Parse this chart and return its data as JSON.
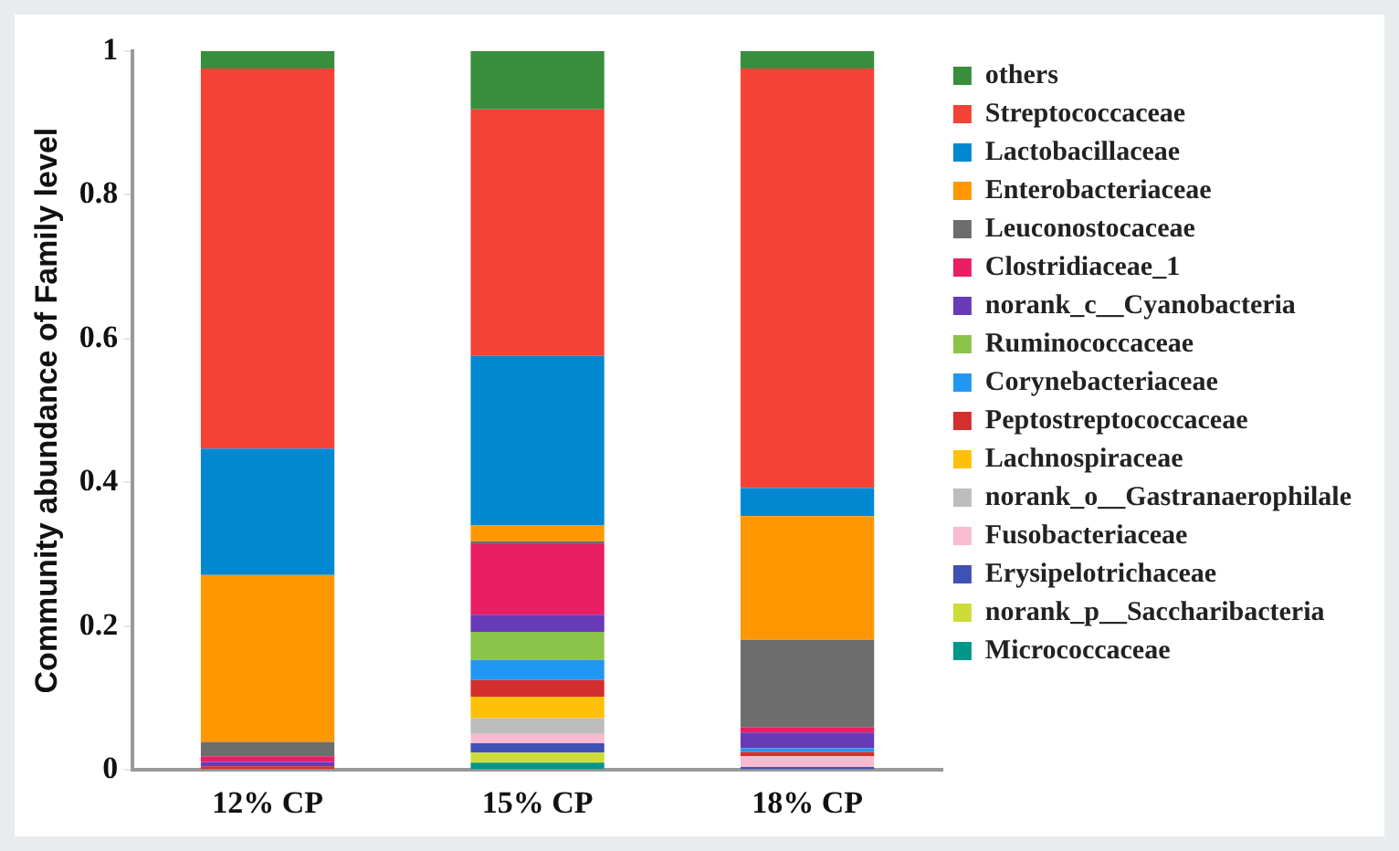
{
  "chart_data": {
    "type": "bar",
    "stacked": true,
    "ylabel": "Community abundance of Family level",
    "categories": [
      "12% CP",
      "15% CP",
      "18% CP"
    ],
    "ylim": [
      0,
      1
    ],
    "yticks": [
      0,
      0.2,
      0.4,
      0.6,
      0.8,
      1
    ],
    "grid": false,
    "legend": "right",
    "series": [
      {
        "name": "Micrococcaceae",
        "color": "#009688",
        "values": [
          null,
          0.01,
          0
        ]
      },
      {
        "name": "norank_p__Saccharibacteria",
        "color": "#cddc39",
        "values": [
          0,
          0.014,
          0
        ]
      },
      {
        "name": "Erysipelotrichaceae",
        "color": "#3f51b5",
        "values": [
          0,
          0.013,
          0.004
        ]
      },
      {
        "name": "Fusobacteriaceae",
        "color": "#f8bbd0",
        "values": [
          null,
          0.013,
          0.015
        ]
      },
      {
        "name": "norank_o__Gastranaerophilale",
        "color": "#bdbdbd",
        "values": [
          0,
          0.022,
          0
        ]
      },
      {
        "name": "Lachnospiraceae",
        "color": "#ffc107",
        "values": [
          0,
          0.03,
          0
        ]
      },
      {
        "name": "Peptostreptococcaceae",
        "color": "#d32f2f",
        "values": [
          0.005,
          0.023,
          0.006
        ]
      },
      {
        "name": "Corynebacteriaceae",
        "color": "#2196f3",
        "values": [
          0,
          0.028,
          0.005
        ]
      },
      {
        "name": "Ruminococcaceae",
        "color": "#8bc34a",
        "values": [
          0,
          0.039,
          0
        ]
      },
      {
        "name": "norank_c__Cyanobacteria",
        "color": "#673ab7",
        "values": [
          0.006,
          0.024,
          0.022
        ]
      },
      {
        "name": "Clostridiaceae_1",
        "color": "#e91e63",
        "values": [
          0.008,
          0.098,
          0.007
        ]
      },
      {
        "name": "Leuconostocaceae",
        "color": "#6d6d6d",
        "values": [
          0.02,
          0.004,
          0.122
        ]
      },
      {
        "name": "Enterobacteriaceae",
        "color": "#ff9800",
        "values": [
          0.232,
          0.022,
          0.172
        ]
      },
      {
        "name": "Lactobacillaceae",
        "color": "#0288d1",
        "values": [
          0.176,
          0.236,
          0.039
        ]
      },
      {
        "name": "Streptococcaceae",
        "color": "#f44336",
        "values": [
          0.529,
          0.343,
          0.584
        ]
      },
      {
        "name": "others",
        "color": "#388e3c",
        "values": [
          0.024,
          0.081,
          0.024
        ]
      }
    ]
  }
}
